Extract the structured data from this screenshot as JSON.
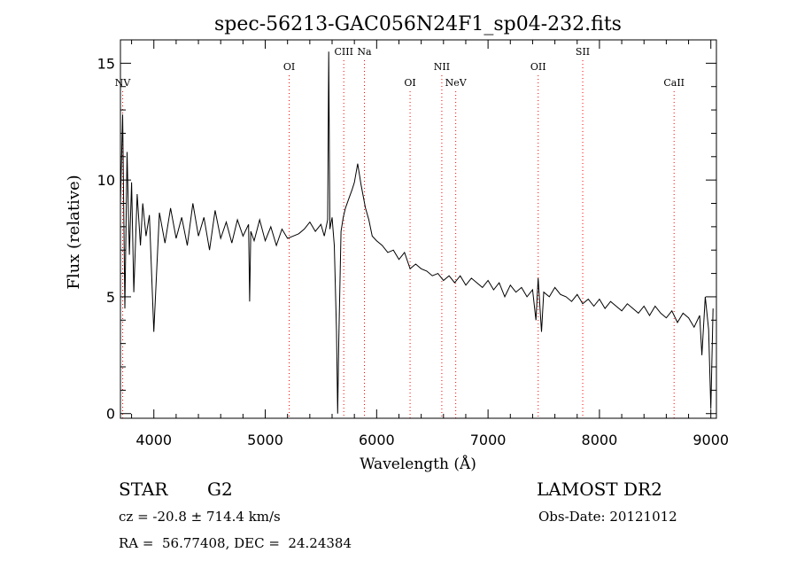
{
  "chart_data": {
    "type": "line",
    "title": "spec-56213-GAC056N24F1_sp04-232.fits",
    "xlabel": "Wavelength (Å)",
    "ylabel": "Flux (relative)",
    "xlim": [
      3700,
      9050
    ],
    "ylim": [
      -0.2,
      16
    ],
    "xticks": [
      4000,
      5000,
      6000,
      7000,
      8000,
      9000
    ],
    "yticks": [
      0,
      5,
      10,
      15
    ],
    "grid": false,
    "line_color": "#000000",
    "marker_color": "#ff0000",
    "series": [
      {
        "x": [
          3700,
          3720,
          3740,
          3760,
          3780,
          3800,
          3820,
          3850,
          3880,
          3900,
          3930,
          3960,
          4000,
          4050,
          4100,
          4150,
          4200,
          4250,
          4300,
          4350,
          4400,
          4450,
          4500,
          4550,
          4600,
          4650,
          4700,
          4750,
          4800,
          4850,
          4860,
          4870,
          4900,
          4950,
          5000,
          5050,
          5100,
          5150,
          5200,
          5250,
          5300,
          5350,
          5400,
          5450,
          5500,
          5530,
          5560,
          5570,
          5580,
          5600,
          5620,
          5640,
          5650,
          5660,
          5680,
          5700,
          5720,
          5750,
          5780,
          5800,
          5830,
          5860,
          5880,
          5900,
          5930,
          5960,
          6000,
          6050,
          6100,
          6150,
          6200,
          6250,
          6300,
          6350,
          6400,
          6450,
          6500,
          6550,
          6600,
          6650,
          6700,
          6750,
          6800,
          6850,
          6900,
          6950,
          7000,
          7050,
          7100,
          7150,
          7200,
          7250,
          7300,
          7350,
          7400,
          7430,
          7450,
          7480,
          7500,
          7550,
          7600,
          7650,
          7700,
          7750,
          7800,
          7850,
          7900,
          7950,
          8000,
          8050,
          8100,
          8150,
          8200,
          8250,
          8300,
          8350,
          8400,
          8450,
          8500,
          8550,
          8600,
          8650,
          8700,
          8750,
          8800,
          8850,
          8900,
          8920,
          8950,
          8980,
          9000,
          9020
        ],
        "y": [
          9.0,
          12.8,
          4.5,
          11.2,
          6.8,
          9.9,
          5.2,
          9.4,
          7.2,
          9.0,
          7.6,
          8.5,
          3.5,
          8.6,
          7.3,
          8.8,
          7.5,
          8.4,
          7.2,
          9.0,
          7.6,
          8.4,
          7.0,
          8.7,
          7.5,
          8.2,
          7.3,
          8.3,
          7.6,
          8.1,
          4.8,
          7.8,
          7.4,
          8.3,
          7.4,
          8.0,
          7.2,
          7.9,
          7.5,
          7.6,
          7.7,
          7.9,
          8.2,
          7.8,
          8.1,
          7.6,
          8.3,
          15.5,
          7.9,
          8.4,
          7.2,
          3.5,
          0.0,
          3.2,
          7.8,
          8.4,
          8.8,
          9.2,
          9.6,
          9.9,
          10.7,
          9.8,
          9.3,
          8.8,
          8.3,
          7.6,
          7.4,
          7.2,
          6.9,
          7.0,
          6.6,
          6.9,
          6.2,
          6.4,
          6.2,
          6.1,
          5.9,
          6.0,
          5.7,
          5.9,
          5.6,
          5.9,
          5.5,
          5.8,
          5.6,
          5.4,
          5.7,
          5.3,
          5.6,
          5.0,
          5.5,
          5.2,
          5.4,
          5.0,
          5.3,
          4.0,
          5.8,
          3.5,
          5.2,
          5.0,
          5.4,
          5.1,
          5.0,
          4.8,
          5.1,
          4.7,
          4.9,
          4.6,
          4.9,
          4.5,
          4.8,
          4.6,
          4.4,
          4.7,
          4.5,
          4.3,
          4.6,
          4.2,
          4.6,
          4.3,
          4.1,
          4.4,
          3.9,
          4.3,
          4.1,
          3.7,
          4.2,
          2.5,
          5.0,
          3.6,
          0.2,
          4.5
        ]
      }
    ],
    "lines": [
      {
        "label": "NV",
        "x": 3720,
        "tier": 2
      },
      {
        "label": "OI",
        "x": 5215,
        "tier": 1
      },
      {
        "label": "CIII",
        "x": 5705,
        "tier": 0
      },
      {
        "label": "Na",
        "x": 5890,
        "tier": 0
      },
      {
        "label": "OI",
        "x": 6300,
        "tier": 2
      },
      {
        "label": "NII",
        "x": 6585,
        "tier": 1
      },
      {
        "label": "NeV",
        "x": 6710,
        "tier": 2
      },
      {
        "label": "OII",
        "x": 7450,
        "tier": 1
      },
      {
        "label": "SII",
        "x": 7850,
        "tier": 0
      },
      {
        "label": "CaII",
        "x": 8670,
        "tier": 2
      }
    ]
  },
  "info": {
    "object_class": "STAR",
    "subclass": "G2",
    "survey": "LAMOST DR2",
    "redshift": "cz = -20.8 ± 714.4 km/s",
    "obs_date": "Obs-Date: 20121012",
    "coords": "RA =  56.77408, DEC =  24.24384"
  }
}
